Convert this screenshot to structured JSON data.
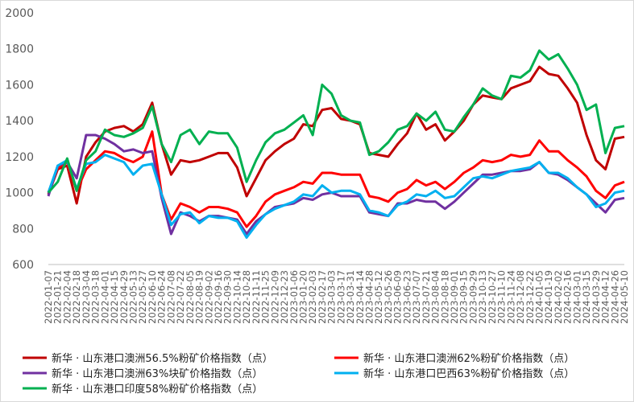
{
  "chart_data": {
    "type": "line",
    "categories": [
      "2022-01-07",
      "2022-01-21",
      "2022-02-04",
      "2022-02-18",
      "2022-03-04",
      "2022-03-18",
      "2022-04-01",
      "2022-04-15",
      "2022-04-29",
      "2022-05-13",
      "2022-05-27",
      "2022-06-10",
      "2022-06-24",
      "2022-07-08",
      "2022-07-22",
      "2022-08-05",
      "2022-08-19",
      "2022-09-02",
      "2022-09-16",
      "2022-09-30",
      "2022-10-14",
      "2022-10-28",
      "2022-11-11",
      "2022-11-25",
      "2022-12-09",
      "2022-12-23",
      "2023-01-06",
      "2023-01-20",
      "2023-02-03",
      "2023-02-17",
      "2023-03-03",
      "2023-03-17",
      "2023-03-31",
      "2023-04-14",
      "2023-04-28",
      "2023-05-12",
      "2023-05-26",
      "2023-06-09",
      "2023-06-23",
      "2023-07-07",
      "2023-07-21",
      "2023-08-04",
      "2023-08-18",
      "2023-09-01",
      "2023-09-15",
      "2023-09-29",
      "2023-10-13",
      "2023-10-27",
      "2023-11-10",
      "2023-11-24",
      "2023-12-08",
      "2023-12-22",
      "2024-01-05",
      "2024-01-19",
      "2024-02-02",
      "2024-02-16",
      "2024-03-01",
      "2024-03-15",
      "2024-03-29",
      "2024-04-12",
      "2024-04-26",
      "2024-05-10"
    ],
    "series": [
      {
        "name": "新华 · 山东港口澳洲56.5%粉矿价格指数（点）",
        "color": "#c00000",
        "values": [
          990,
          1130,
          1150,
          940,
          1200,
          1280,
          1340,
          1360,
          1370,
          1340,
          1380,
          1500,
          1270,
          1100,
          1180,
          1170,
          1180,
          1200,
          1220,
          1220,
          1140,
          980,
          1080,
          1180,
          1230,
          1270,
          1300,
          1380,
          1370,
          1460,
          1470,
          1410,
          1400,
          1380,
          1220,
          1210,
          1200,
          1270,
          1330,
          1440,
          1350,
          1380,
          1290,
          1340,
          1400,
          1490,
          1540,
          1530,
          1520,
          1580,
          1600,
          1620,
          1700,
          1660,
          1650,
          1580,
          1500,
          1320,
          1180,
          1130,
          1300,
          1310
        ]
      },
      {
        "name": "新华 · 山东港口澳洲62%粉矿价格指数（点）",
        "color": "#ff0000",
        "values": [
          1000,
          1140,
          1170,
          1010,
          1130,
          1180,
          1230,
          1220,
          1190,
          1170,
          1200,
          1340,
          990,
          850,
          940,
          920,
          890,
          920,
          920,
          910,
          890,
          810,
          870,
          950,
          990,
          1010,
          1030,
          1060,
          1050,
          1110,
          1110,
          1100,
          1100,
          1100,
          980,
          970,
          950,
          1000,
          1020,
          1070,
          1040,
          1060,
          1020,
          1060,
          1110,
          1140,
          1180,
          1170,
          1180,
          1210,
          1200,
          1210,
          1290,
          1230,
          1230,
          1180,
          1140,
          1090,
          1010,
          970,
          1040,
          1060
        ]
      },
      {
        "name": "新华 · 山东港口澳洲63%块矿价格指数（点）",
        "color": "#7030a0",
        "values": [
          980,
          1150,
          1170,
          1080,
          1320,
          1320,
          1300,
          1270,
          1230,
          1240,
          1220,
          1230,
          970,
          770,
          890,
          870,
          840,
          870,
          870,
          860,
          850,
          770,
          840,
          880,
          920,
          930,
          940,
          970,
          960,
          990,
          1000,
          980,
          980,
          980,
          890,
          880,
          870,
          940,
          940,
          960,
          950,
          950,
          910,
          950,
          1000,
          1050,
          1100,
          1100,
          1110,
          1120,
          1120,
          1130,
          1170,
          1110,
          1100,
          1070,
          1030,
          990,
          940,
          890,
          960,
          970
        ]
      },
      {
        "name": "新华 · 山东港口巴西63%粉矿价格指数（点）",
        "color": "#00b0f0",
        "values": [
          1000,
          1150,
          1180,
          1020,
          1160,
          1170,
          1210,
          1190,
          1170,
          1100,
          1150,
          1160,
          990,
          820,
          880,
          890,
          830,
          870,
          860,
          860,
          840,
          750,
          820,
          880,
          910,
          930,
          950,
          990,
          980,
          1040,
          1000,
          1010,
          1010,
          990,
          900,
          890,
          870,
          930,
          950,
          990,
          980,
          1010,
          970,
          980,
          1030,
          1080,
          1090,
          1080,
          1100,
          1120,
          1130,
          1140,
          1170,
          1110,
          1110,
          1080,
          1030,
          990,
          920,
          940,
          1000,
          1010
        ]
      },
      {
        "name": "新华 · 山东港口印度58%粉矿价格指数（点）",
        "color": "#00b050",
        "values": [
          1000,
          1060,
          1190,
          1010,
          1180,
          1230,
          1350,
          1320,
          1310,
          1330,
          1360,
          1480,
          1270,
          1170,
          1320,
          1350,
          1270,
          1340,
          1330,
          1330,
          1250,
          1060,
          1180,
          1280,
          1330,
          1350,
          1390,
          1430,
          1320,
          1600,
          1550,
          1430,
          1400,
          1390,
          1210,
          1230,
          1280,
          1350,
          1370,
          1440,
          1400,
          1450,
          1350,
          1340,
          1420,
          1490,
          1580,
          1540,
          1520,
          1650,
          1640,
          1680,
          1790,
          1740,
          1770,
          1690,
          1600,
          1460,
          1490,
          1220,
          1360,
          1370
        ]
      }
    ],
    "ylim": [
      600,
      2000
    ],
    "yticks": [
      600,
      800,
      1000,
      1200,
      1400,
      1600,
      1800,
      2000
    ],
    "grid": false,
    "legend": "bottom"
  }
}
